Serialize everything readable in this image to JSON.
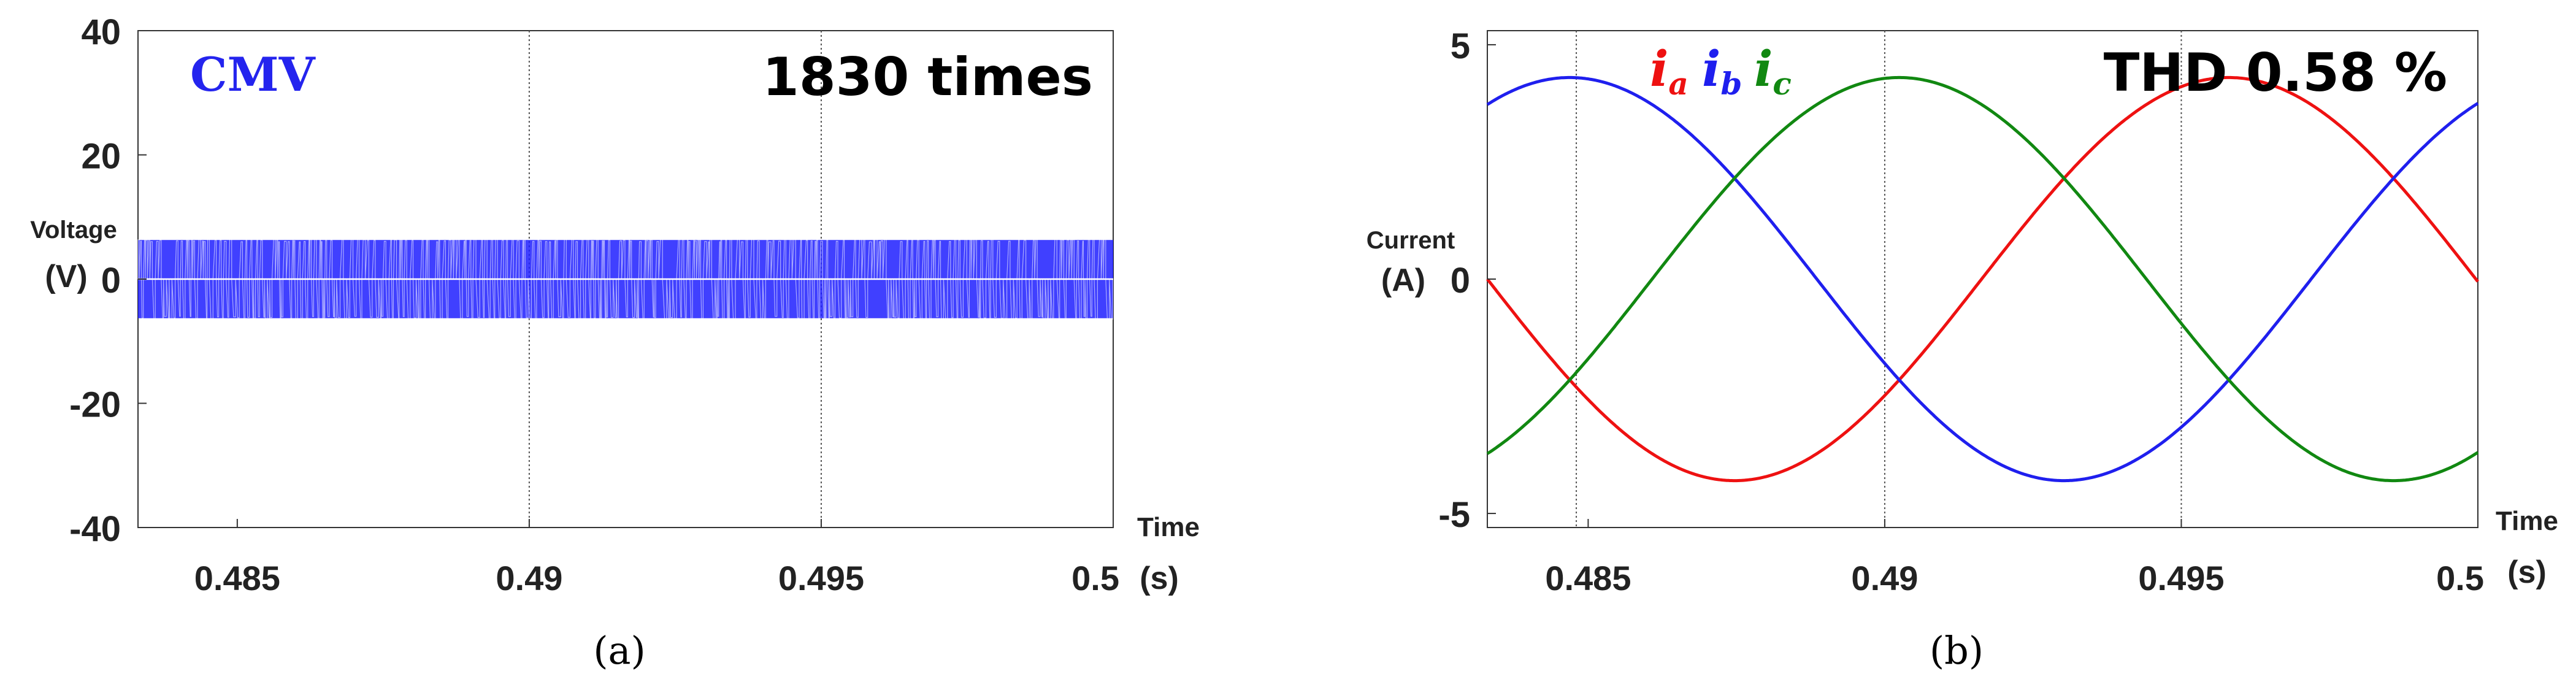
{
  "chart_data": [
    {
      "type": "line",
      "panel_caption": "(a)",
      "title_label": "CMV",
      "annotation": "1830 times",
      "ylabel_line1": "Voltage",
      "ylabel_line2": "(V)",
      "xlabel_line1": "Time",
      "xlabel_unit": "(s)",
      "xlim": [
        0.4833,
        0.5
      ],
      "ylim": [
        -40,
        40
      ],
      "x_ticks": [
        0.485,
        0.49,
        0.495,
        0.5
      ],
      "x_tick_labels": [
        "0.485",
        "0.49",
        "0.495",
        "0.5"
      ],
      "y_ticks": [
        40,
        20,
        0,
        -20,
        -40
      ],
      "y_tick_labels": [
        "40",
        "20",
        "0",
        "-20",
        "-40"
      ],
      "vgrid": [
        0.49,
        0.495
      ],
      "grid_style": "dotted",
      "series": [
        {
          "color": "#1f1fff",
          "levels": [
            6.3,
            0,
            -6.3
          ],
          "description": "PWM switching square pulses"
        }
      ]
    },
    {
      "type": "line",
      "panel_caption": "(b)",
      "annotation": "THD 0.58 %",
      "ylabel_line1": "Current",
      "ylabel_line2": "(A)",
      "xlabel_line1": "Time",
      "xlabel_unit": "(s)",
      "xlim": [
        0.4833,
        0.5
      ],
      "ylim": [
        -5.3,
        5.3
      ],
      "x_ticks": [
        0.485,
        0.49,
        0.495,
        0.5
      ],
      "x_tick_labels": [
        "0.485",
        "0.49",
        "0.495",
        "0.5"
      ],
      "y_ticks": [
        5,
        0,
        -5
      ],
      "y_tick_labels": [
        "5",
        "0",
        "-5"
      ],
      "vgrid": [
        0.4848,
        0.49,
        0.495
      ],
      "grid_style": "dotted",
      "amplitude": 4.3,
      "frequency_hz": 60,
      "series": [
        {
          "name_base": "i",
          "name_sub": "a",
          "color": "#ee1111",
          "phase_deg": 0
        },
        {
          "name_base": "i",
          "name_sub": "b",
          "color": "#1f1fee",
          "phase_deg": -120
        },
        {
          "name_base": "i",
          "name_sub": "c",
          "color": "#118811",
          "phase_deg": 120
        }
      ]
    }
  ]
}
